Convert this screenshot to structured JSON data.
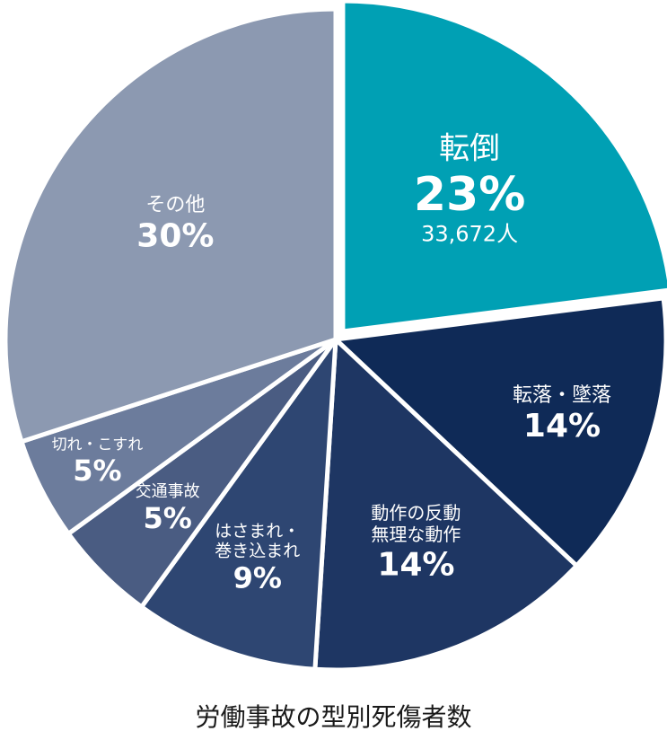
{
  "chart_data": {
    "type": "pie",
    "title": "労働事故の型別死傷者数",
    "slices": [
      {
        "name": "転倒",
        "value": 23,
        "value_label": "23%",
        "count_label": "33,672人",
        "color": "#00A0B4"
      },
      {
        "name": "転落・墜落",
        "value": 14,
        "value_label": "14%",
        "color": "#0F2A57"
      },
      {
        "name": "動作の反動\n無理な動作",
        "value": 14,
        "value_label": "14%",
        "color": "#1E3663"
      },
      {
        "name": "はさまれ・\n巻き込まれ",
        "value": 9,
        "value_label": "9%",
        "color": "#2E4672"
      },
      {
        "name": "交通事故",
        "value": 5,
        "value_label": "5%",
        "color": "#4A5C82"
      },
      {
        "name": "切れ・こすれ",
        "value": 5,
        "value_label": "5%",
        "color": "#6C7C9C"
      },
      {
        "name": "その他",
        "value": 30,
        "value_label": "30%",
        "color": "#8C99B1"
      }
    ]
  }
}
